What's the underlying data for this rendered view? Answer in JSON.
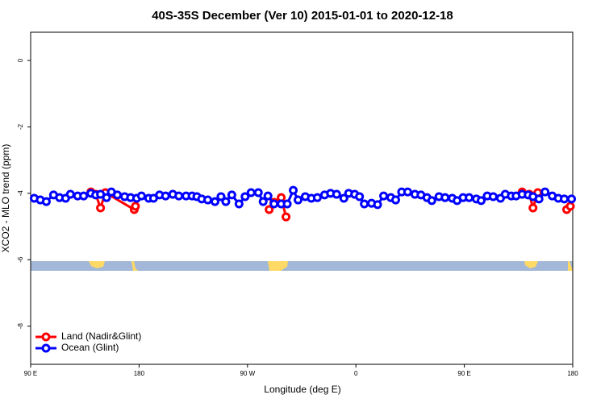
{
  "chart_data": {
    "type": "line",
    "title": "40S-35S December (Ver 10)   2015-01-01 to 2020-12-18",
    "x_label": "Longitude (deg E)",
    "y_label": "XCO2 - MLO trend (ppm)",
    "xlim": [
      90,
      540
    ],
    "ylim": [
      -9.15,
      0.85
    ],
    "xticks": [
      {
        "value": 90,
        "label": "90 E"
      },
      180,
      {
        "value": 270,
        "label": "90 W"
      },
      {
        "value": 360,
        "label": "0"
      },
      {
        "value": 450,
        "label": "90 E"
      },
      {
        "value": 540,
        "label": "180"
      }
    ],
    "yticks": [
      0,
      -2,
      -4,
      -6,
      -8
    ],
    "legend": "bottomleft",
    "series": [
      {
        "name": "Land (Nadir&Glint)",
        "color": "#ff0000",
        "x": [
          140,
          144,
          148,
          152,
          176,
          177,
          200,
          288,
          292,
          298,
          302,
          400,
          498,
          504,
          507,
          511,
          520,
          535,
          538
        ],
        "values": [
          -3.96,
          -4.03,
          -4.44,
          -3.98,
          -4.49,
          -4.39,
          null,
          -4.49,
          -4.27,
          -4.13,
          -4.71,
          null,
          -3.96,
          -4.03,
          -4.44,
          -3.98,
          null,
          -4.49,
          -4.39
        ]
      },
      {
        "name": "Ocean (Glint)",
        "color": "#0000ff",
        "x": [
          93,
          98,
          103,
          109,
          114,
          119,
          123,
          129,
          134,
          140,
          144,
          148,
          153,
          157,
          162,
          168,
          173,
          178,
          182,
          188,
          192,
          197,
          202,
          208,
          213,
          219,
          224,
          228,
          232,
          237,
          243,
          248,
          252,
          257,
          263,
          268,
          273,
          279,
          283,
          287,
          292,
          298,
          303,
          308,
          312,
          318,
          323,
          328,
          334,
          339,
          344,
          350,
          354,
          359,
          363,
          367,
          373,
          378,
          383,
          389,
          393,
          398,
          403,
          409,
          414,
          419,
          423,
          429,
          434,
          440,
          444,
          449,
          454,
          460,
          464,
          469,
          474,
          480,
          484,
          489,
          493,
          498,
          503,
          507,
          512,
          517,
          523,
          528,
          533,
          539
        ],
        "values": [
          -4.15,
          -4.2,
          -4.25,
          -4.05,
          -4.13,
          -4.15,
          -4.03,
          -4.08,
          -4.08,
          -4.0,
          -4.05,
          -4.03,
          -4.13,
          -3.96,
          -4.05,
          -4.1,
          -4.13,
          -4.15,
          -4.08,
          -4.15,
          -4.15,
          -4.05,
          -4.08,
          -4.03,
          -4.08,
          -4.08,
          -4.08,
          -4.1,
          -4.17,
          -4.2,
          -4.25,
          -4.1,
          -4.25,
          -4.05,
          -4.32,
          -4.1,
          -3.98,
          -3.98,
          -4.25,
          -4.08,
          -4.32,
          -4.32,
          -4.32,
          -3.91,
          -4.2,
          -4.1,
          -4.15,
          -4.13,
          -4.05,
          -4.0,
          -4.03,
          -4.15,
          -4.0,
          -4.03,
          -4.1,
          -4.32,
          -4.3,
          -4.34,
          -4.08,
          -4.13,
          -4.2,
          -3.96,
          -3.96,
          -4.03,
          -4.05,
          -4.13,
          -4.22,
          -4.1,
          -4.13,
          -4.15,
          -4.22,
          -4.13,
          -4.13,
          -4.17,
          -4.22,
          -4.08,
          -4.1,
          -4.15,
          -4.03,
          -4.08,
          -4.08,
          -4.03,
          -4.05,
          -4.1,
          -4.17,
          -3.96,
          -4.08,
          -4.15,
          -4.17,
          -4.17
        ]
      }
    ]
  }
}
